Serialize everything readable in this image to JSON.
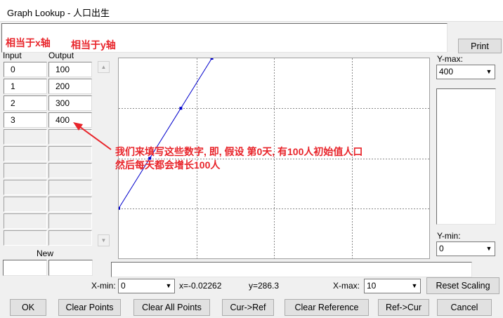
{
  "window": {
    "title": "Graph Lookup - 人口出生"
  },
  "buttons": {
    "print": "Print",
    "reset_scaling": "Reset Scaling",
    "ok": "OK",
    "clear_points": "Clear Points",
    "clear_all_points": "Clear All Points",
    "cur_ref": "Cur->Ref",
    "clear_reference": "Clear Reference",
    "ref_cur": "Ref->Cur",
    "cancel": "Cancel"
  },
  "annotations": {
    "x_axis_note": "相当于x轴",
    "y_axis_note": "相当于y轴",
    "explanation_line1": "我们来填写这些数字, 即, 假设 第0天, 有100人初始值人口",
    "explanation_line2": "然后每天都会增长100人"
  },
  "table": {
    "input_header": "Input",
    "output_header": "Output",
    "rows": [
      {
        "input": "0",
        "output": "100"
      },
      {
        "input": "1",
        "output": "200"
      },
      {
        "input": "2",
        "output": "300"
      },
      {
        "input": "3",
        "output": "400"
      }
    ],
    "new_label": "New"
  },
  "y_max": {
    "label": "Y-max:",
    "value": "400"
  },
  "y_min": {
    "label": "Y-min:",
    "value": "0"
  },
  "x_min": {
    "label": "X-min:",
    "value": "0"
  },
  "x_max": {
    "label": "X-max:",
    "value": "10"
  },
  "cursor": {
    "x_readout": "x=-0.02262",
    "y_readout": "y=286.3"
  },
  "graph": {
    "line_color": "#0000cc",
    "x_range": [
      0,
      10
    ],
    "y_range": [
      0,
      400
    ],
    "points": [
      {
        "x": 0,
        "y": 100
      },
      {
        "x": 1,
        "y": 200
      },
      {
        "x": 2,
        "y": 300
      },
      {
        "x": 3,
        "y": 400
      }
    ]
  },
  "colors": {
    "annotation": "#e8252b",
    "background": "#f0f0f0"
  }
}
